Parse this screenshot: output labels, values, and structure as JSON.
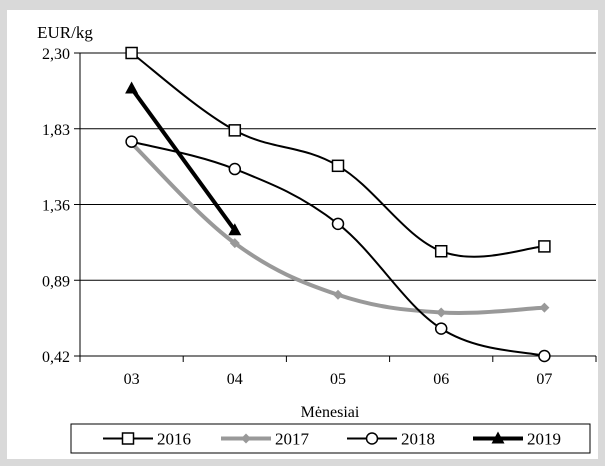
{
  "chart_data": {
    "type": "line",
    "title": "",
    "xlabel": "Mėnesiai",
    "ylabel": "EUR/kg",
    "categories": [
      "03",
      "04",
      "05",
      "06",
      "07"
    ],
    "ylim": [
      0.42,
      2.3
    ],
    "yticks": [
      "0,42",
      "0,89",
      "1,36",
      "1,83",
      "2,30"
    ],
    "grid": "horizontal",
    "legend_position": "bottom",
    "series": [
      {
        "name": "2016",
        "values": [
          2.3,
          1.82,
          1.6,
          1.07,
          1.1
        ],
        "color": "#000000",
        "marker": "square-open"
      },
      {
        "name": "2017",
        "values": [
          1.74,
          1.12,
          0.8,
          0.69,
          0.72
        ],
        "color": "#999999",
        "marker": "diamond-filled"
      },
      {
        "name": "2018",
        "values": [
          1.75,
          1.58,
          1.24,
          0.59,
          0.42
        ],
        "color": "#000000",
        "marker": "circle-open"
      },
      {
        "name": "2019",
        "values": [
          2.08,
          1.2,
          null,
          null,
          null
        ],
        "color": "#000000",
        "marker": "triangle-filled"
      }
    ]
  }
}
